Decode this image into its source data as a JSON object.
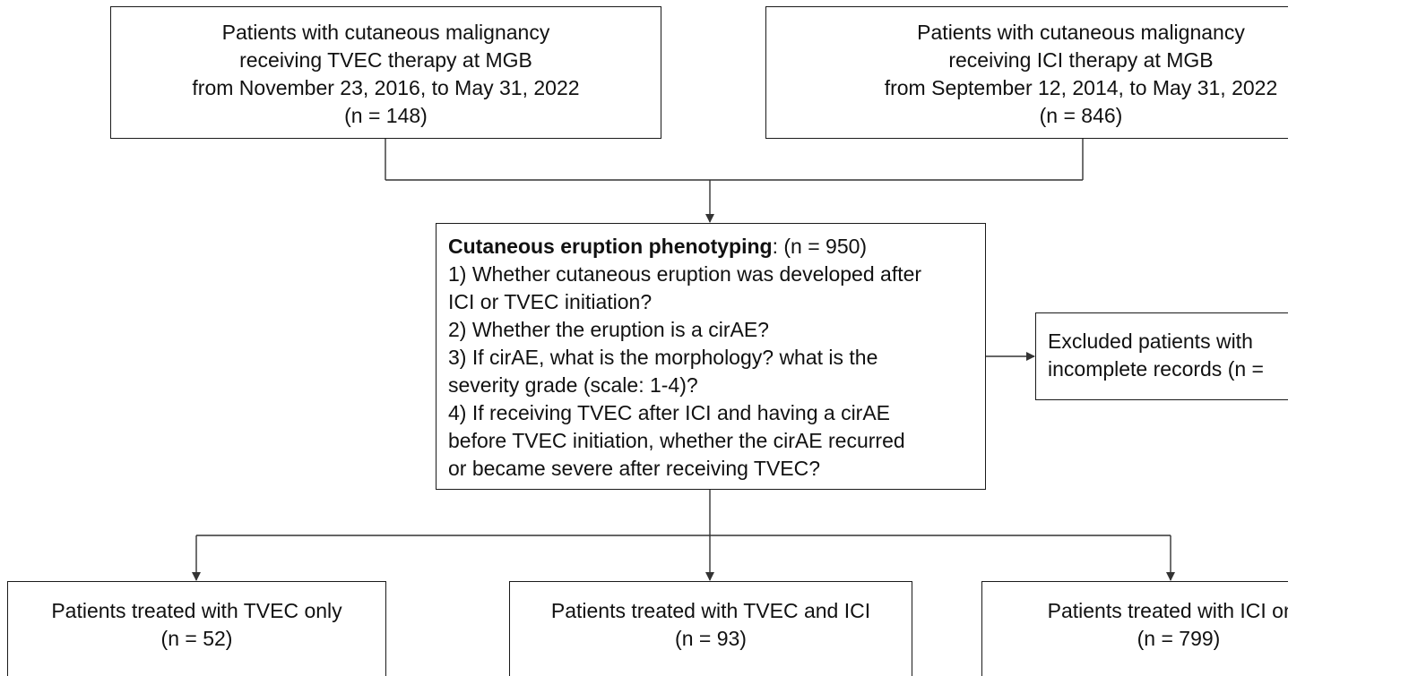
{
  "boxes": {
    "tvec_cohort": {
      "lines": [
        "Patients with cutaneous malignancy",
        "receiving TVEC therapy at MGB",
        "from November 23, 2016, to May 31, 2022",
        "(n = 148)"
      ]
    },
    "ici_cohort": {
      "lines": [
        "Patients with cutaneous malignancy",
        "receiving ICI therapy at MGB",
        "from September 12, 2014, to May 31, 2022",
        "(n = 846)"
      ]
    },
    "phenotyping": {
      "heading": "Cutaneous eruption phenotyping",
      "heading_suffix": ": (n = 950)",
      "lines": [
        "1) Whether cutaneous eruption was developed after",
        "ICI or TVEC initiation?",
        "2) Whether the eruption is a cirAE?",
        "3) If cirAE, what is the morphology? what is the",
        "severity grade (scale: 1-4)?",
        "4) If receiving TVEC after ICI and having a cirAE",
        "before TVEC initiation, whether the cirAE recurred",
        "or became severe after receiving TVEC?"
      ]
    },
    "excluded": {
      "lines": [
        "Excluded patients with",
        "incomplete records (n = "
      ]
    },
    "tvec_only": {
      "lines": [
        "Patients treated with TVEC only",
        "(n = 52)"
      ]
    },
    "tvec_and_ici": {
      "lines": [
        "Patients treated with TVEC and ICI",
        "(n = 93)"
      ]
    },
    "ici_only": {
      "lines": [
        "Patients treated with ICI only",
        "(n = 799)"
      ]
    }
  },
  "colors": {
    "border": "#1a1a1a",
    "connector": "#333333",
    "text": "#111111",
    "background": "#ffffff"
  }
}
